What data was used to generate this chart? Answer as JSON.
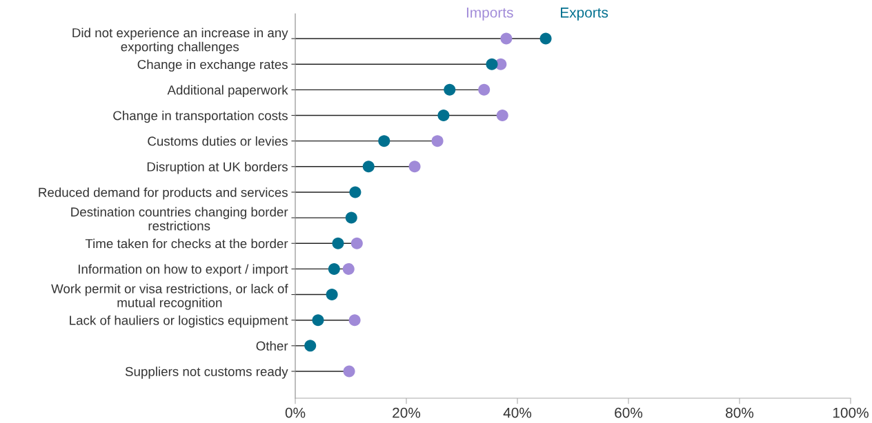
{
  "chart_data": {
    "type": "lollipop",
    "orientation": "horizontal",
    "legend": "top",
    "marker": "circle",
    "grid": false,
    "categories": [
      "Did not experience an increase in any\nexporting challenges",
      "Change in exchange rates",
      "Additional paperwork",
      "Change in transportation costs",
      "Customs duties or levies",
      "Disruption at UK borders",
      "Reduced demand for products and services",
      "Destination countries changing border\nrestrictions",
      "Time taken for checks at the border",
      "Information on how to export / import",
      "Work permit or visa restrictions, or lack of\nmutual recognition",
      "Lack of hauliers or logistics equipment",
      "Other",
      "Suppliers not customs ready"
    ],
    "series": [
      {
        "name": "Imports",
        "color": "#a08ad8",
        "values": [
          38.0,
          37.0,
          34.0,
          37.3,
          25.6,
          21.5,
          null,
          null,
          11.1,
          9.6,
          null,
          10.7,
          null,
          9.7
        ]
      },
      {
        "name": "Exports",
        "color": "#00708f",
        "values": [
          45.1,
          35.4,
          27.8,
          26.7,
          16.0,
          13.2,
          10.8,
          10.1,
          7.7,
          7.0,
          6.6,
          4.1,
          2.7,
          null
        ]
      }
    ],
    "xlim": [
      0,
      100
    ],
    "xticks": [
      {
        "value": 0,
        "label": "0%"
      },
      {
        "value": 20,
        "label": "20%"
      },
      {
        "value": 40,
        "label": "40%"
      },
      {
        "value": 60,
        "label": "60%"
      },
      {
        "value": 80,
        "label": "80%"
      },
      {
        "value": 100,
        "label": "100%"
      }
    ]
  }
}
